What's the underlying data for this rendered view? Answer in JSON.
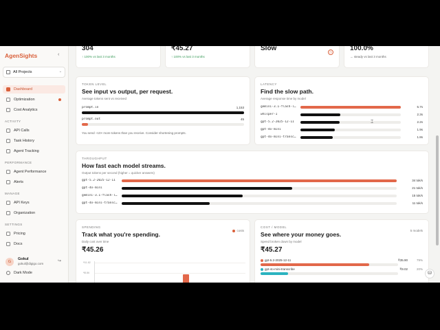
{
  "sidebar": {
    "brand": "AgenSights",
    "collapse_icon": "‹",
    "project": "All Projects",
    "items": [
      {
        "label": "Dashboard",
        "active": true
      },
      {
        "label": "Optimization",
        "dot": true
      },
      {
        "label": "Cost Analytics"
      }
    ],
    "activity_label": "ACTIVITY",
    "activity": [
      {
        "label": "API Calls"
      },
      {
        "label": "Task History"
      },
      {
        "label": "Agent Tracking"
      }
    ],
    "performance_label": "PERFORMANCE",
    "performance": [
      {
        "label": "Agent Performance"
      },
      {
        "label": "Alerts"
      }
    ],
    "manage_label": "MANAGE",
    "manage": [
      {
        "label": "API Keys"
      },
      {
        "label": "Organization"
      }
    ],
    "settings_label": "SETTINGS",
    "settings": [
      {
        "label": "Pricing"
      },
      {
        "label": "Docs"
      }
    ],
    "user": {
      "initial": "G",
      "name": "Gokul",
      "email": "gokul@digigo.com"
    },
    "dark_mode": "Dark Mode"
  },
  "kpis": [
    {
      "value": "304",
      "trend": "↑ 100% vs last 3 months"
    },
    {
      "value": "₹45.27",
      "trend": "↑ 100% vs last 3 months"
    },
    {
      "value": "Slow",
      "trend": ""
    },
    {
      "value": "100.0%",
      "trend": "→ steady vs last 3 months"
    }
  ],
  "tokens": {
    "eyebrow": "TOKEN LEVEL",
    "title": "See input vs output, per request.",
    "subtitle": "Average tokens sent vs received",
    "rows": [
      {
        "label": "prompt.in",
        "value": "1,153",
        "fraction": 1.0
      },
      {
        "label": "prompt.out",
        "value": "45",
        "fraction": 0.04
      }
    ],
    "note": "You send ~10× more tokens than you receive. Consider shortening prompts."
  },
  "latency": {
    "eyebrow": "LATENCY",
    "title": "Find the slow path.",
    "subtitle": "Average response time by model",
    "rows": [
      {
        "label": "gemini-3.1-flash-l…",
        "value": "5.7s",
        "fraction": 1.0,
        "highlight": true
      },
      {
        "label": "whisper-1",
        "value": "2.3s",
        "fraction": 0.4
      },
      {
        "label": "gpt-5.2-2025-12-11",
        "value": "2.2s",
        "fraction": 0.39
      },
      {
        "label": "gpt-4o-mini",
        "value": "1.9s",
        "fraction": 0.34
      },
      {
        "label": "gpt-4o-mini-transc…",
        "value": "1.8s",
        "fraction": 0.32
      }
    ]
  },
  "throughput": {
    "eyebrow": "THROUGHPUT",
    "title": "How fast each model streams.",
    "subtitle": "Output tokens per second (higher = quicker answers)",
    "rows": [
      {
        "label": "gpt-5.2-2025-12-11",
        "value": "34 tok/s",
        "fraction": 1.0,
        "highlight": true
      },
      {
        "label": "gpt-4o-mini",
        "value": "21 tok/s",
        "fraction": 0.62
      },
      {
        "label": "gemini-3.1-flash-l…",
        "value": "15 tok/s",
        "fraction": 0.44
      },
      {
        "label": "gpt-4o-mini-transc…",
        "value": "11 tok/s",
        "fraction": 0.32
      }
    ]
  },
  "spending": {
    "eyebrow": "SPENDING",
    "title": "Track what you're spending.",
    "subtitle": "Daily cost over time",
    "legend": "costs",
    "total": "₹45.26",
    "ticks": [
      "₹11.82",
      "₹8.86"
    ],
    "bar_fraction": 0.6
  },
  "cost_model": {
    "eyebrow": "COST / MODEL",
    "title": "See where your money goes.",
    "subtitle": "Spend broken down by model",
    "count": "5 models",
    "total": "₹45.27",
    "rows": [
      {
        "label": "gpt-5.2-2025-12-11",
        "value": "₹35.90",
        "pct": "79%",
        "fraction": 0.79,
        "color": "#e2684a"
      },
      {
        "label": "gpt-4o-mini-transcribe",
        "value": "₹9.02",
        "pct": "20%",
        "fraction": 0.2,
        "color": "#2bb3c0"
      }
    ]
  }
}
